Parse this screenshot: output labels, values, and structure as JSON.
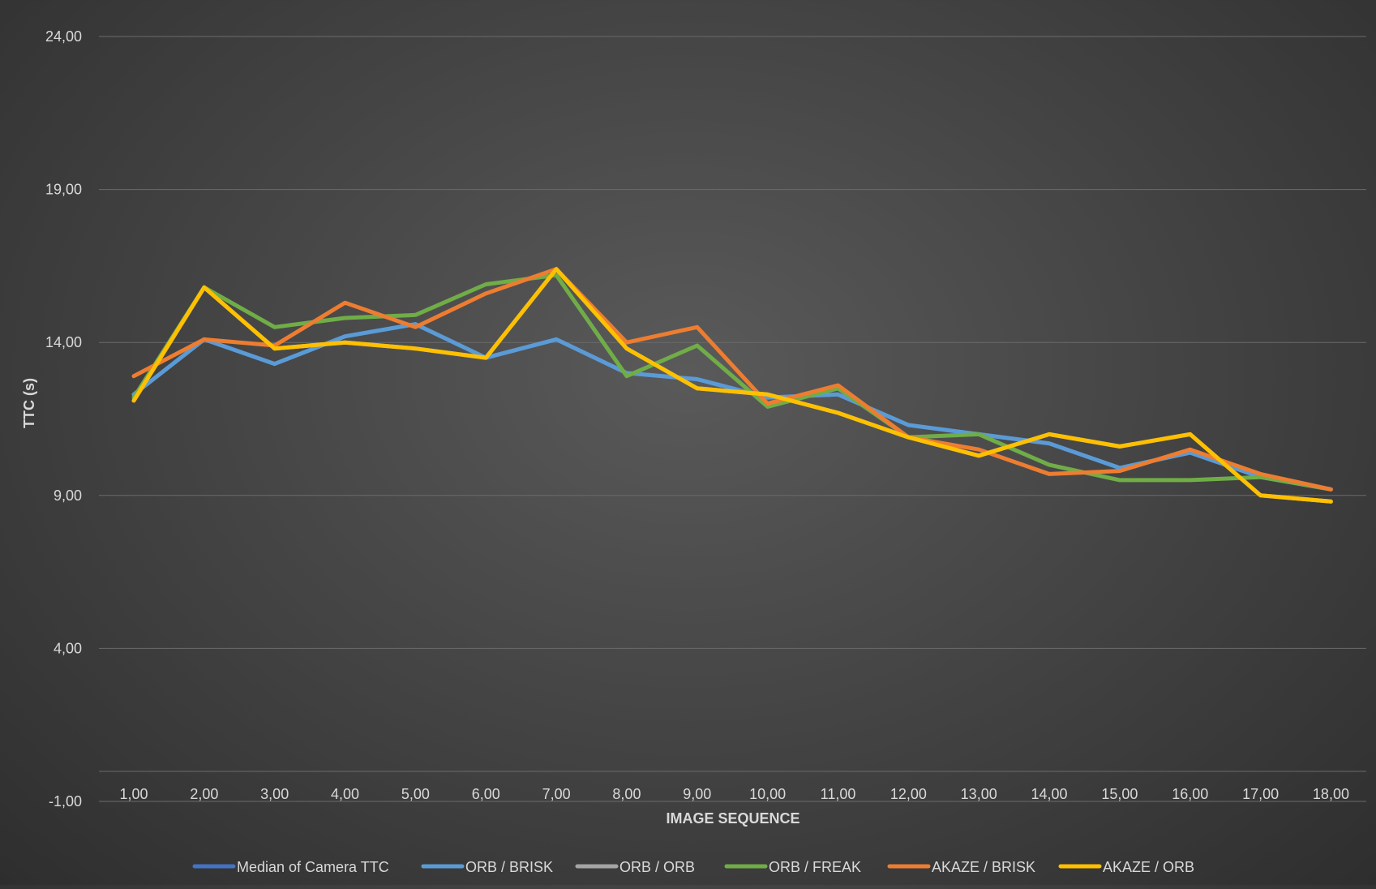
{
  "chart_data": {
    "type": "line",
    "title": "",
    "xlabel": "IMAGE SEQUENCE",
    "ylabel": "TTC (s)",
    "ylim": [
      -1,
      24
    ],
    "yticks": [
      "24,00",
      "19,00",
      "14,00",
      "9,00",
      "4,00",
      "-1,00"
    ],
    "ytick_values": [
      24,
      19,
      14,
      9,
      4,
      -1
    ],
    "categories": [
      "1,00",
      "2,00",
      "3,00",
      "4,00",
      "5,00",
      "6,00",
      "7,00",
      "8,00",
      "9,00",
      "10,00",
      "11,00",
      "12,00",
      "13,00",
      "14,00",
      "15,00",
      "16,00",
      "17,00",
      "18,00"
    ],
    "x": [
      1,
      2,
      3,
      4,
      5,
      6,
      7,
      8,
      9,
      10,
      11,
      12,
      13,
      14,
      15,
      16,
      17,
      18
    ],
    "grid": true,
    "legend_position": "bottom",
    "series": [
      {
        "name": "Median of Camera TTC",
        "color": "#4472c4",
        "values": [
          12.3,
          14.1,
          13.3,
          14.2,
          14.6,
          13.5,
          14.1,
          13.0,
          12.8,
          12.2,
          12.3,
          11.3,
          11.0,
          10.7,
          9.9,
          10.4,
          9.6,
          9.2
        ]
      },
      {
        "name": "ORB / BRISK",
        "color": "#5b9bd5",
        "values": [
          12.3,
          14.1,
          13.3,
          14.2,
          14.6,
          13.5,
          14.1,
          13.0,
          12.8,
          12.2,
          12.3,
          11.3,
          11.0,
          10.7,
          9.9,
          10.4,
          9.6,
          9.2
        ]
      },
      {
        "name": "ORB  / ORB",
        "color": "#a5a5a5",
        "values": [
          12.1,
          15.8,
          13.8,
          14.0,
          13.8,
          13.5,
          16.4,
          13.8,
          12.5,
          12.3,
          11.7,
          10.9,
          10.3,
          11.0,
          10.6,
          11.0,
          9.0,
          8.8
        ]
      },
      {
        "name": "ORB  / FREAK",
        "color": "#70ad47",
        "values": [
          12.2,
          15.8,
          14.5,
          14.8,
          14.9,
          15.9,
          16.2,
          12.9,
          13.9,
          11.9,
          12.5,
          10.9,
          11.0,
          10.0,
          9.5,
          9.5,
          9.6,
          9.2
        ]
      },
      {
        "name": "AKAZE / BRISK",
        "color": "#ed7d31",
        "values": [
          12.9,
          14.1,
          13.9,
          15.3,
          14.5,
          15.6,
          16.4,
          14.0,
          14.5,
          12.0,
          12.6,
          10.9,
          10.5,
          9.7,
          9.8,
          10.5,
          9.7,
          9.2
        ]
      },
      {
        "name": "AKAZE / ORB",
        "color": "#ffc000",
        "values": [
          12.1,
          15.8,
          13.8,
          14.0,
          13.8,
          13.5,
          16.4,
          13.8,
          12.5,
          12.3,
          11.7,
          10.9,
          10.3,
          11.0,
          10.6,
          11.0,
          9.0,
          8.8
        ]
      }
    ]
  }
}
